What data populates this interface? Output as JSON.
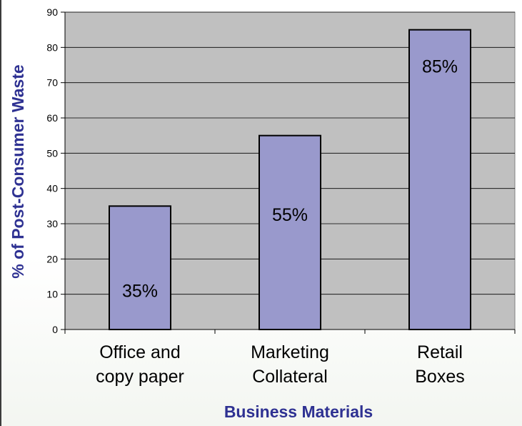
{
  "chart_data": {
    "type": "bar",
    "categories": [
      [
        "Office and",
        "copy paper"
      ],
      [
        "Marketing",
        "Collateral"
      ],
      [
        "Retail",
        "Boxes"
      ]
    ],
    "values": [
      35,
      55,
      85
    ],
    "data_labels": [
      "35%",
      "55%",
      "85%"
    ],
    "title": "",
    "xlabel": "Business Materials",
    "ylabel": "% of Post-Consumer Waste",
    "ylim": [
      0,
      90
    ],
    "yticks": [
      0,
      10,
      20,
      30,
      40,
      50,
      60,
      70,
      80,
      90
    ],
    "grid": true,
    "legend": "none"
  },
  "colors": {
    "plot_background": "#c0c0c0",
    "bar_fill": "#9999cc",
    "bar_stroke": "#000000",
    "gridline": "#000000",
    "axis_title": "#2e3192"
  }
}
